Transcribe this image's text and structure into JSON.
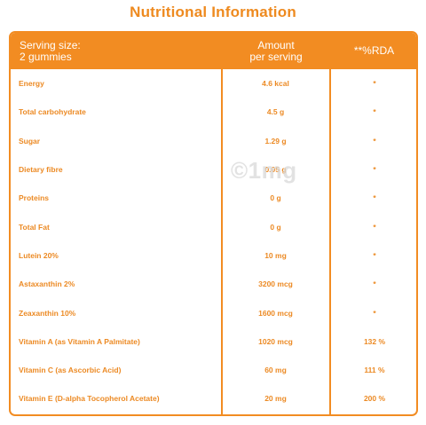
{
  "title": "Nutritional Information",
  "header": {
    "col1_line1": "Serving size:",
    "col1_line2": "2 gummies",
    "col2_line1": "Amount",
    "col2_line2": "per serving",
    "col3": "**%RDA"
  },
  "watermark": "©1mg",
  "rows": [
    {
      "name": "Energy",
      "amount": "4.6 kcal",
      "rda": "*"
    },
    {
      "name": "Total carbohydrate",
      "amount": "4.5 g",
      "rda": "*"
    },
    {
      "name": "Sugar",
      "amount": "1.29 g",
      "rda": "*"
    },
    {
      "name": "Dietary fibre",
      "amount": "0.05 g",
      "rda": "*"
    },
    {
      "name": "Proteins",
      "amount": "0 g",
      "rda": "*"
    },
    {
      "name": "Total Fat",
      "amount": "0 g",
      "rda": "*"
    },
    {
      "name": "Lutein 20%",
      "amount": "10 mg",
      "rda": "*"
    },
    {
      "name": "Astaxanthin 2%",
      "amount": "3200 mcg",
      "rda": "*"
    },
    {
      "name": "Zeaxanthin 10%",
      "amount": "1600 mcg",
      "rda": "*"
    },
    {
      "name": "Vitamin A (as Vitamin A Palmitate)",
      "amount": "1020 mcg",
      "rda": "132 %"
    },
    {
      "name": "Vitamin C (as Ascorbic Acid)",
      "amount": "60 mg",
      "rda": "111 %"
    },
    {
      "name": "Vitamin E (D-alpha Tocopherol Acetate)",
      "amount": "20 mg",
      "rda": "200 %"
    }
  ]
}
